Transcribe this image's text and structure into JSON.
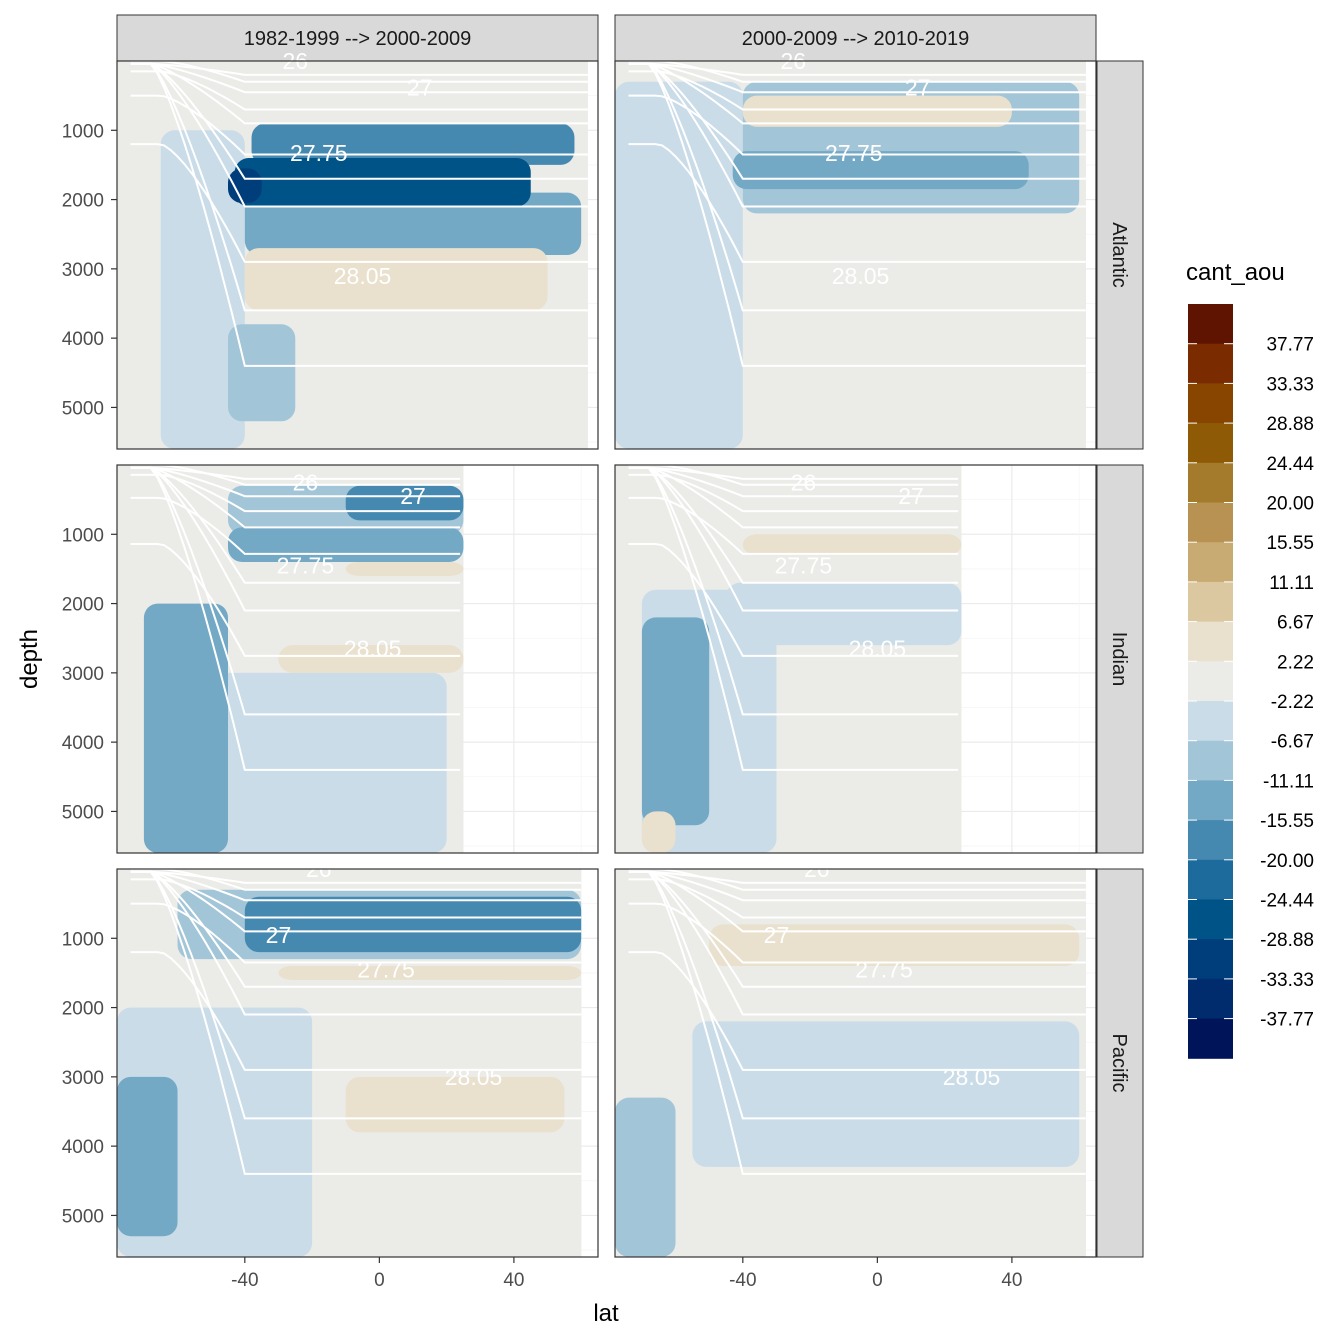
{
  "chart_data": {
    "type": "heatmap",
    "subtype": "faceted filled-contour sections",
    "xlabel": "lat",
    "ylabel": "depth",
    "x_ticks": [
      -40,
      0,
      40
    ],
    "y_ticks": [
      1000,
      2000,
      3000,
      4000,
      5000
    ],
    "xlim": [
      -78,
      65
    ],
    "ylim": [
      5600,
      0
    ],
    "y_reversed": true,
    "grid": true,
    "columns": [
      "1982-1999 --> 2000-2009",
      "2000-2009 --> 2010-2019"
    ],
    "rows": [
      "Atlantic",
      "Indian",
      "Pacific"
    ],
    "legend": {
      "title": "cant_aou",
      "placement": "right",
      "labels": [
        "37.77",
        "33.33",
        "28.88",
        "24.44",
        "20.00",
        "15.55",
        "11.11",
        "6.67",
        "2.22",
        "-2.22",
        "-6.67",
        "-11.11",
        "-15.55",
        "-20.00",
        "-24.44",
        "-28.88",
        "-33.33",
        "-37.77"
      ],
      "colors": [
        "#5e1400",
        "#7a2c00",
        "#884500",
        "#8f5a06",
        "#a47b2c",
        "#b89252",
        "#c7ab73",
        "#dbc7a0",
        "#e9e0cd",
        "#ebebe8",
        "#c9dce8",
        "#a3c5d8",
        "#74a9c6",
        "#4689b0",
        "#1c6b9c",
        "#005386",
        "#003d7b",
        "#002b6d",
        "#00145a"
      ]
    },
    "isopycnals": {
      "color": "#ffffff",
      "labeled_levels": [
        "26",
        "27",
        "27.75",
        "28.05"
      ]
    },
    "panels": [
      {
        "column": "1982-1999 --> 2000-2009",
        "row": "Atlantic",
        "lat_range": [
          -78,
          62
        ],
        "regions": [
          {
            "name": "deep-background",
            "value": 0,
            "lat": [
              -55,
              -20
            ],
            "depth": [
              2300,
              5600
            ]
          },
          {
            "name": "southern-column",
            "value": -5,
            "lat": [
              -65,
              -40
            ],
            "depth": [
              1000,
              5600
            ]
          },
          {
            "name": "abyssal-south",
            "value": -9,
            "lat": [
              -45,
              -25
            ],
            "depth": [
              3800,
              5200
            ]
          },
          {
            "name": "deep-band",
            "value": -13,
            "lat": [
              -40,
              60
            ],
            "depth": [
              1900,
              2800
            ]
          },
          {
            "name": "intermediate-band",
            "value": -17,
            "lat": [
              -38,
              58
            ],
            "depth": [
              900,
              1500
            ]
          },
          {
            "name": "core-band",
            "value": -25,
            "lat": [
              -43,
              45
            ],
            "depth": [
              1400,
              2100
            ]
          },
          {
            "name": "core-max",
            "value": -33,
            "lat": [
              -45,
              -35
            ],
            "depth": [
              1550,
              2050
            ]
          },
          {
            "name": "bottom-positive",
            "value": 4,
            "lat": [
              -40,
              50
            ],
            "depth": [
              2700,
              3600
            ]
          }
        ]
      },
      {
        "column": "2000-2009 --> 2010-2019",
        "row": "Atlantic",
        "lat_range": [
          -78,
          62
        ],
        "regions": [
          {
            "name": "deep-background",
            "value": 0,
            "lat": [
              -45,
              62
            ],
            "depth": [
              2200,
              5600
            ]
          },
          {
            "name": "southern-column",
            "value": -4,
            "lat": [
              -78,
              -40
            ],
            "depth": [
              300,
              5600
            ]
          },
          {
            "name": "upper-band",
            "value": -9,
            "lat": [
              -40,
              60
            ],
            "depth": [
              300,
              2200
            ]
          },
          {
            "name": "core-band",
            "value": -14,
            "lat": [
              -43,
              45
            ],
            "depth": [
              1300,
              1850
            ]
          },
          {
            "name": "upper-positive",
            "value": 4,
            "lat": [
              -40,
              40
            ],
            "depth": [
              500,
              950
            ]
          }
        ]
      },
      {
        "column": "1982-1999 --> 2000-2009",
        "row": "Indian",
        "lat_range": [
          -78,
          25
        ],
        "regions": [
          {
            "name": "background",
            "value": 0,
            "lat": [
              -70,
              25
            ],
            "depth": [
              300,
              3100
            ]
          },
          {
            "name": "deep-column",
            "value": -5,
            "lat": [
              -70,
              20
            ],
            "depth": [
              3000,
              5600
            ]
          },
          {
            "name": "abyssal-west",
            "value": -15,
            "lat": [
              -70,
              -45
            ],
            "depth": [
              2000,
              5600
            ]
          },
          {
            "name": "upper-band",
            "value": -10,
            "lat": [
              -45,
              25
            ],
            "depth": [
              300,
              1000
            ]
          },
          {
            "name": "upper-core",
            "value": -20,
            "lat": [
              -10,
              25
            ],
            "depth": [
              300,
              800
            ]
          },
          {
            "name": "thermocline-band",
            "value": -13,
            "lat": [
              -45,
              25
            ],
            "depth": [
              900,
              1400
            ]
          },
          {
            "name": "mid-positive",
            "value": 4,
            "lat": [
              -10,
              25
            ],
            "depth": [
              1400,
              1600
            ]
          },
          {
            "name": "deep-positive",
            "value": 4,
            "lat": [
              -30,
              25
            ],
            "depth": [
              2600,
              3000
            ]
          }
        ]
      },
      {
        "column": "2000-2009 --> 2010-2019",
        "row": "Indian",
        "lat_range": [
          -78,
          25
        ],
        "regions": [
          {
            "name": "background",
            "value": 0,
            "lat": [
              -70,
              25
            ],
            "depth": [
              300,
              5600
            ]
          },
          {
            "name": "deep-column",
            "value": -5,
            "lat": [
              -70,
              -30
            ],
            "depth": [
              1800,
              5600
            ]
          },
          {
            "name": "abyssal-west",
            "value": -12,
            "lat": [
              -70,
              -50
            ],
            "depth": [
              2200,
              5200
            ]
          },
          {
            "name": "mid-band",
            "value": -5,
            "lat": [
              -45,
              25
            ],
            "depth": [
              1700,
              2600
            ]
          },
          {
            "name": "upper-positive",
            "value": 4,
            "lat": [
              -40,
              25
            ],
            "depth": [
              1000,
              1300
            ]
          },
          {
            "name": "bottom-positive",
            "value": 4,
            "lat": [
              -70,
              -60
            ],
            "depth": [
              5000,
              5600
            ]
          }
        ]
      },
      {
        "column": "1982-1999 --> 2000-2009",
        "row": "Pacific",
        "lat_range": [
          -78,
          60
        ],
        "regions": [
          {
            "name": "background",
            "value": 0,
            "lat": [
              -55,
              60
            ],
            "depth": [
              1500,
              5600
            ]
          },
          {
            "name": "deep-column",
            "value": -4,
            "lat": [
              -78,
              -20
            ],
            "depth": [
              2000,
              5600
            ]
          },
          {
            "name": "abyssal-west",
            "value": -14,
            "lat": [
              -78,
              -60
            ],
            "depth": [
              3000,
              5300
            ]
          },
          {
            "name": "upper-band",
            "value": -8,
            "lat": [
              -60,
              60
            ],
            "depth": [
              300,
              1300
            ]
          },
          {
            "name": "upper-core",
            "value": -20,
            "lat": [
              -40,
              60
            ],
            "depth": [
              400,
              1200
            ]
          },
          {
            "name": "mid-positive",
            "value": 3,
            "lat": [
              -30,
              60
            ],
            "depth": [
              1400,
              1600
            ]
          },
          {
            "name": "deep-positive",
            "value": 4,
            "lat": [
              -10,
              55
            ],
            "depth": [
              3000,
              3800
            ]
          }
        ]
      },
      {
        "column": "2000-2009 --> 2010-2019",
        "row": "Pacific",
        "lat_range": [
          -78,
          62
        ],
        "regions": [
          {
            "name": "background",
            "value": 0,
            "lat": [
              -70,
              62
            ],
            "depth": [
              300,
              5600
            ]
          },
          {
            "name": "deep-band",
            "value": -4,
            "lat": [
              -55,
              60
            ],
            "depth": [
              2200,
              4300
            ]
          },
          {
            "name": "abyssal-west",
            "value": -9,
            "lat": [
              -78,
              -60
            ],
            "depth": [
              3300,
              5600
            ]
          },
          {
            "name": "upper-positive",
            "value": 4,
            "lat": [
              -50,
              60
            ],
            "depth": [
              800,
              1400
            ]
          }
        ]
      }
    ]
  }
}
